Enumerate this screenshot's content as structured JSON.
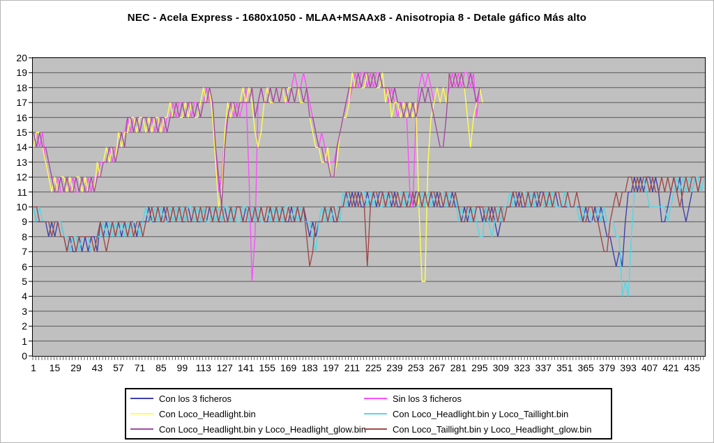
{
  "chart_data": {
    "type": "line",
    "title": "NEC - Acela Express - 1680x1050 - MLAA+MSAAx8 - Anisotropia 8 - Detale gáfico Más alto",
    "xlabel": "",
    "ylabel": "",
    "ylim": [
      0,
      20
    ],
    "y_tick_step": 1,
    "y_ticks": [
      0,
      1,
      2,
      3,
      4,
      5,
      6,
      7,
      8,
      9,
      10,
      11,
      12,
      13,
      14,
      15,
      16,
      17,
      18,
      19,
      20
    ],
    "x_ticks": [
      1,
      15,
      29,
      43,
      57,
      71,
      85,
      99,
      113,
      127,
      141,
      155,
      169,
      183,
      197,
      211,
      225,
      239,
      253,
      267,
      281,
      295,
      309,
      323,
      337,
      351,
      365,
      379,
      393,
      407,
      421,
      435
    ],
    "x_count": 443,
    "x_sample_start": 1,
    "x_sample_step": 2,
    "grid": "horizontal",
    "legend_position": "bottom-center",
    "plot_bg": "#c0c0c0",
    "grid_color": "#595959",
    "axis_color": "#000000",
    "series": [
      {
        "name": "Con los 3 ficheros",
        "color": "#3f41ab",
        "values": [
          10,
          9,
          9,
          9,
          9,
          8,
          9,
          8,
          9,
          9,
          8,
          7,
          8,
          7,
          7,
          8,
          7,
          8,
          7,
          8,
          8,
          7,
          9,
          8,
          9,
          8,
          9,
          8,
          9,
          8,
          9,
          8,
          9,
          9,
          8,
          9,
          9,
          9,
          10,
          9,
          9,
          10,
          9,
          10,
          9,
          9,
          10,
          9,
          10,
          9,
          9,
          10,
          9,
          10,
          9,
          9,
          10,
          9,
          10,
          9,
          10,
          9,
          9,
          10,
          9,
          10,
          9,
          10,
          10,
          9,
          10,
          9,
          9,
          10,
          9,
          10,
          9,
          9,
          10,
          9,
          10,
          9,
          10,
          9,
          9,
          10,
          9,
          10,
          9,
          10,
          9,
          8,
          9,
          8,
          9,
          9,
          10,
          9,
          10,
          9,
          9,
          10,
          10,
          11,
          10,
          11,
          10,
          11,
          10,
          10,
          11,
          10,
          11,
          10,
          11,
          11,
          10,
          11,
          10,
          11,
          10,
          10,
          11,
          10,
          11,
          10,
          11,
          11,
          10,
          11,
          10,
          11,
          10,
          11,
          10,
          10,
          11,
          10,
          11,
          10,
          10,
          9,
          10,
          9,
          10,
          9,
          10,
          10,
          9,
          10,
          9,
          10,
          9,
          8,
          9,
          10,
          10,
          10,
          11,
          10,
          11,
          10,
          10,
          11,
          10,
          11,
          10,
          11,
          11,
          10,
          11,
          10,
          11,
          10,
          10,
          10,
          10,
          10,
          10,
          10,
          10,
          9,
          10,
          9,
          9,
          10,
          9,
          10,
          9,
          8,
          8,
          7,
          6,
          7,
          6,
          9,
          11,
          11,
          12,
          11,
          12,
          11,
          12,
          12,
          11,
          12,
          11,
          9,
          9,
          10,
          11,
          12,
          11,
          12,
          10,
          9,
          10,
          11,
          12,
          11,
          12,
          12
        ]
      },
      {
        "name": "Sin los 3 ficheros",
        "color": "#ff4dff",
        "values": [
          14,
          15,
          14,
          15,
          13,
          12,
          12,
          11,
          12,
          11,
          11,
          12,
          11,
          12,
          11,
          11,
          12,
          11,
          12,
          11,
          12,
          12,
          13,
          13,
          13,
          14,
          13,
          14,
          14,
          15,
          15,
          16,
          15,
          16,
          16,
          15,
          16,
          16,
          15,
          16,
          15,
          16,
          16,
          15,
          16,
          16,
          17,
          16,
          17,
          17,
          16,
          17,
          16,
          17,
          17,
          16,
          17,
          18,
          17,
          17,
          14,
          11,
          12,
          15,
          16,
          17,
          16,
          17,
          16,
          17,
          18,
          12,
          5,
          8,
          17,
          18,
          17,
          18,
          18,
          17,
          18,
          17,
          18,
          17,
          17,
          18,
          19,
          18,
          18,
          19,
          18,
          17,
          16,
          15,
          14,
          15,
          14,
          13,
          13,
          13,
          14,
          15,
          16,
          17,
          17,
          18,
          19,
          18,
          19,
          19,
          18,
          19,
          18,
          19,
          19,
          18,
          18,
          17,
          18,
          17,
          16,
          17,
          17,
          16,
          11,
          10,
          16,
          18,
          19,
          18,
          19,
          18,
          17,
          18,
          17,
          18,
          17,
          18,
          19,
          18,
          19,
          18,
          19,
          19,
          18,
          19,
          16,
          18,
          18
        ]
      },
      {
        "name": "Con Loco_Headlight.bin",
        "color": "#ffff4d",
        "values": [
          14,
          15,
          15,
          14,
          13,
          12,
          11,
          12,
          11,
          12,
          12,
          11,
          12,
          11,
          12,
          12,
          11,
          12,
          11,
          12,
          11,
          13,
          12,
          13,
          14,
          13,
          14,
          13,
          15,
          14,
          15,
          15,
          16,
          16,
          15,
          16,
          16,
          15,
          16,
          15,
          16,
          16,
          15,
          16,
          16,
          17,
          16,
          17,
          16,
          16,
          17,
          16,
          17,
          16,
          16,
          17,
          18,
          17,
          18,
          16,
          13,
          10,
          11,
          15,
          17,
          16,
          17,
          16,
          17,
          18,
          17,
          18,
          17,
          15,
          14,
          15,
          17,
          18,
          17,
          17,
          18,
          17,
          18,
          17,
          18,
          18,
          17,
          18,
          17,
          17,
          18,
          16,
          15,
          14,
          14,
          13,
          13,
          14,
          12,
          12,
          13,
          15,
          16,
          16,
          17,
          19,
          18,
          19,
          18,
          18,
          19,
          18,
          19,
          18,
          18,
          19,
          17,
          18,
          16,
          17,
          17,
          16,
          17,
          16,
          17,
          16,
          17,
          10,
          5,
          5,
          13,
          16,
          17,
          18,
          17,
          18,
          17,
          19,
          18,
          19,
          18,
          19,
          18,
          16,
          14,
          16,
          17,
          18,
          17
        ]
      },
      {
        "name": "Con Loco_Headlight.bin y Loco_Taillight.bin",
        "color": "#4fd8e8",
        "values": [
          10,
          9,
          10,
          9,
          9,
          9,
          8,
          9,
          9,
          9,
          8,
          8,
          7,
          8,
          8,
          7,
          8,
          8,
          8,
          7,
          7,
          8,
          8,
          9,
          8,
          9,
          8,
          9,
          8,
          9,
          8,
          9,
          8,
          9,
          9,
          8,
          9,
          10,
          9,
          9,
          10,
          9,
          10,
          9,
          9,
          10,
          9,
          10,
          9,
          10,
          9,
          10,
          10,
          9,
          10,
          9,
          10,
          9,
          9,
          10,
          9,
          10,
          9,
          10,
          10,
          9,
          10,
          9,
          9,
          10,
          10,
          9,
          10,
          9,
          10,
          9,
          9,
          10,
          9,
          10,
          9,
          10,
          9,
          10,
          10,
          9,
          10,
          9,
          10,
          9,
          9,
          9,
          8,
          7,
          9,
          10,
          9,
          10,
          9,
          10,
          10,
          9,
          11,
          10,
          11,
          10,
          11,
          10,
          11,
          11,
          10,
          11,
          10,
          11,
          10,
          10,
          11,
          10,
          11,
          10,
          11,
          11,
          10,
          11,
          10,
          11,
          10,
          10,
          11,
          10,
          11,
          10,
          11,
          10,
          11,
          11,
          10,
          11,
          10,
          11,
          9,
          10,
          9,
          10,
          9,
          10,
          9,
          8,
          8,
          10,
          9,
          8,
          9,
          10,
          9,
          10,
          10,
          11,
          10,
          11,
          10,
          11,
          11,
          10,
          11,
          10,
          11,
          10,
          10,
          11,
          10,
          11,
          10,
          10,
          10,
          11,
          10,
          10,
          10,
          10,
          9,
          10,
          9,
          10,
          9,
          9,
          10,
          9,
          10,
          9,
          9,
          9,
          8,
          8,
          4,
          5,
          4,
          8,
          11,
          12,
          11,
          12,
          11,
          10,
          10,
          10,
          10,
          10,
          10,
          9,
          10,
          11,
          12,
          11,
          12,
          11,
          12,
          11,
          12,
          12,
          11,
          12
        ]
      },
      {
        "name": "Con Loco_Headlight.bin y Loco_Headlight_glow.bin",
        "color": "#a04ca0",
        "values": [
          15,
          14,
          15,
          14,
          14,
          13,
          12,
          11,
          11,
          12,
          11,
          12,
          11,
          11,
          12,
          11,
          12,
          11,
          11,
          12,
          11,
          12,
          12,
          13,
          13,
          14,
          14,
          13,
          14,
          15,
          14,
          16,
          16,
          15,
          16,
          15,
          16,
          16,
          15,
          16,
          16,
          15,
          16,
          16,
          15,
          16,
          16,
          17,
          16,
          17,
          16,
          17,
          17,
          16,
          17,
          16,
          17,
          17,
          18,
          17,
          14,
          12,
          10,
          14,
          16,
          17,
          17,
          16,
          17,
          17,
          17,
          17,
          18,
          16,
          17,
          18,
          17,
          17,
          18,
          17,
          18,
          17,
          18,
          18,
          17,
          18,
          17,
          18,
          18,
          17,
          18,
          16,
          16,
          15,
          14,
          14,
          13,
          13,
          12,
          12,
          14,
          15,
          16,
          17,
          18,
          18,
          18,
          19,
          18,
          19,
          19,
          18,
          19,
          18,
          19,
          18,
          18,
          18,
          17,
          18,
          17,
          17,
          16,
          17,
          16,
          17,
          16,
          17,
          18,
          17,
          18,
          17,
          16,
          15,
          14,
          14,
          16,
          19,
          18,
          19,
          18,
          19,
          18,
          18,
          19,
          18,
          17,
          18,
          18
        ]
      },
      {
        "name": "Con Loco_Taillight.bin y Loco_Headlight_glow.bin",
        "color": "#a04848",
        "values": [
          10,
          10,
          9,
          9,
          9,
          9,
          8,
          9,
          9,
          8,
          8,
          7,
          8,
          8,
          7,
          8,
          8,
          8,
          8,
          8,
          7,
          8,
          9,
          8,
          7,
          8,
          9,
          8,
          9,
          9,
          9,
          8,
          9,
          8,
          9,
          9,
          8,
          9,
          9,
          10,
          9,
          10,
          9,
          9,
          10,
          9,
          10,
          9,
          10,
          9,
          10,
          9,
          9,
          10,
          9,
          10,
          9,
          10,
          10,
          9,
          10,
          9,
          10,
          9,
          9,
          10,
          9,
          10,
          10,
          9,
          9,
          10,
          9,
          10,
          9,
          10,
          9,
          10,
          10,
          9,
          10,
          9,
          10,
          9,
          10,
          9,
          9,
          10,
          9,
          10,
          8,
          6,
          7,
          9,
          9,
          9,
          10,
          9,
          10,
          10,
          9,
          10,
          10,
          11,
          11,
          10,
          11,
          10,
          11,
          10,
          6,
          10,
          11,
          11,
          10,
          11,
          10,
          11,
          11,
          10,
          11,
          10,
          11,
          10,
          10,
          11,
          10,
          11,
          10,
          11,
          10,
          11,
          11,
          10,
          11,
          10,
          11,
          10,
          10,
          11,
          10,
          9,
          9,
          10,
          10,
          9,
          10,
          10,
          10,
          9,
          10,
          9,
          10,
          9,
          10,
          9,
          10,
          10,
          11,
          11,
          10,
          11,
          10,
          11,
          10,
          11,
          11,
          10,
          11,
          10,
          11,
          10,
          11,
          11,
          10,
          10,
          11,
          10,
          10,
          11,
          10,
          9,
          9,
          10,
          10,
          9,
          9,
          8,
          7,
          7,
          9,
          10,
          11,
          10,
          11,
          11,
          12,
          12,
          11,
          12,
          11,
          12,
          12,
          11,
          12,
          11,
          11,
          12,
          11,
          12,
          11,
          12,
          11,
          10,
          11,
          12,
          11,
          12,
          12,
          11,
          12,
          12
        ]
      }
    ]
  }
}
